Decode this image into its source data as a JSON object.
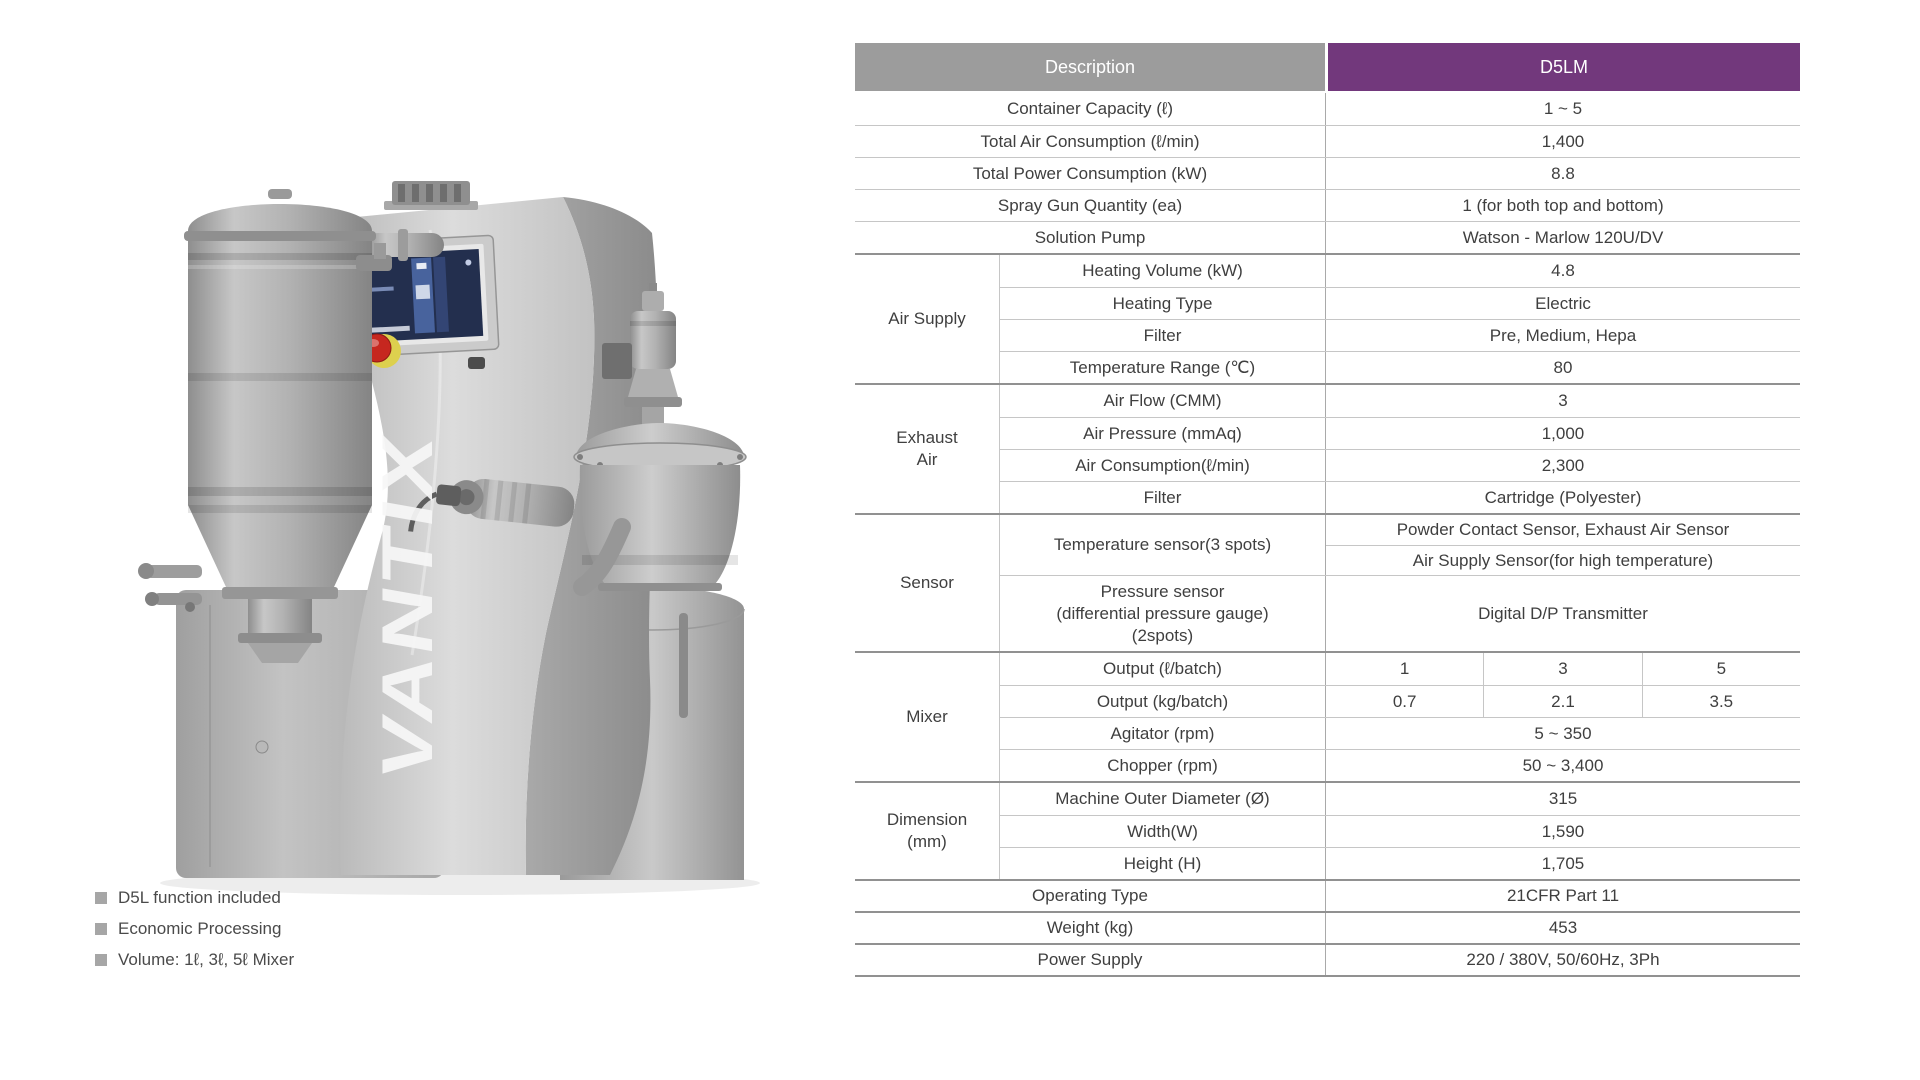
{
  "page": {
    "background": "#ffffff"
  },
  "machine": {
    "brand_text": "VANTIX"
  },
  "features": {
    "bullet_color": "#a6a6a6",
    "items": [
      "D5L function included",
      "Economic Processing",
      "Volume: 1ℓ, 3ℓ, 5ℓ Mixer"
    ]
  },
  "spec_table": {
    "header": {
      "description_label": "Description",
      "model_label": "D5LM",
      "description_bg": "#9c9c9c",
      "model_bg": "#72387c"
    },
    "rows": [
      {
        "type": "simple",
        "label": "Container Capacity (ℓ)",
        "value": "1 ~ 5"
      },
      {
        "type": "simple",
        "label": "Total Air Consumption (ℓ/min)",
        "value": "1,400"
      },
      {
        "type": "simple",
        "label": "Total Power Consumption (kW)",
        "value": "8.8"
      },
      {
        "type": "simple",
        "label": "Spray Gun Quantity (ea)",
        "value": "1 (for both top and bottom)"
      },
      {
        "type": "simple",
        "label": "Solution Pump",
        "value": "Watson - Marlow 120U/DV"
      },
      {
        "type": "group",
        "category": "Air Supply",
        "rows": [
          {
            "label": "Heating Volume (kW)",
            "value": "4.8"
          },
          {
            "label": "Heating Type",
            "value": "Electric"
          },
          {
            "label": "Filter",
            "value": "Pre, Medium, Hepa"
          },
          {
            "label": "Temperature Range (℃)",
            "value": "80"
          }
        ]
      },
      {
        "type": "group",
        "category": "Exhaust\nAir",
        "rows": [
          {
            "label": "Air Flow (CMM)",
            "value": "3"
          },
          {
            "label": "Air Pressure (mmAq)",
            "value": "1,000"
          },
          {
            "label": "Air Consumption(ℓ/min)",
            "value": "2,300"
          },
          {
            "label": "Filter",
            "value": "Cartridge (Polyester)"
          }
        ]
      },
      {
        "type": "group",
        "category": "Sensor",
        "rows": [
          {
            "label": "Temperature sensor(3 spots)",
            "values_stacked": [
              "Powder Contact Sensor, Exhaust Air Sensor",
              "Air Supply Sensor(for high temperature)"
            ]
          },
          {
            "label": "Pressure sensor\n(differential pressure gauge)\n(2spots)",
            "value": "Digital D/P Transmitter",
            "tall": true
          }
        ]
      },
      {
        "type": "group",
        "category": "Mixer",
        "rows": [
          {
            "label": "Output (ℓ/batch)",
            "values_split": [
              "1",
              "3",
              "5"
            ]
          },
          {
            "label": "Output (kg/batch)",
            "values_split": [
              "0.7",
              "2.1",
              "3.5"
            ]
          },
          {
            "label": "Agitator (rpm)",
            "value": "5 ~ 350"
          },
          {
            "label": "Chopper (rpm)",
            "value": "50 ~ 3,400"
          }
        ]
      },
      {
        "type": "group",
        "category": "Dimension\n(mm)",
        "rows": [
          {
            "label": "Machine Outer Diameter (Ø)",
            "value": "315"
          },
          {
            "label": "Width(W)",
            "value": "1,590"
          },
          {
            "label": "Height (H)",
            "value": "1,705"
          }
        ]
      },
      {
        "type": "simple",
        "label": "Operating Type",
        "value": "21CFR Part 11"
      },
      {
        "type": "simple",
        "label": "Weight (kg)",
        "value": "453"
      },
      {
        "type": "simple",
        "label": "Power Supply",
        "value": "220 / 380V, 50/60Hz, 3Ph"
      }
    ]
  }
}
